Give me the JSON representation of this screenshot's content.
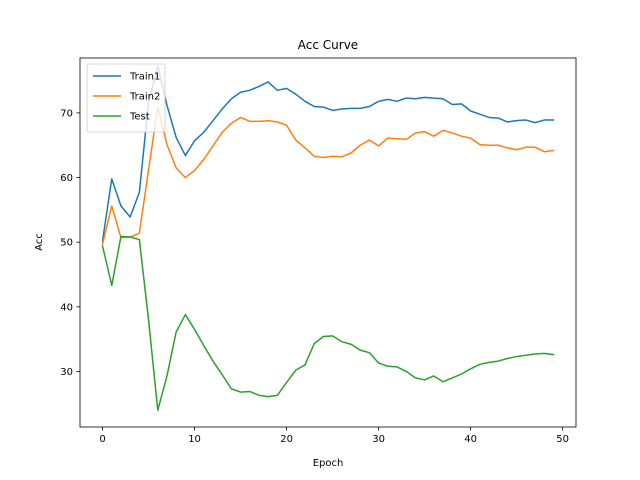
{
  "chart_data": {
    "type": "line",
    "title": "Acc Curve",
    "xlabel": "Epoch",
    "ylabel": "Acc",
    "xlim": [
      -2.45,
      51.45
    ],
    "ylim": [
      21.4,
      78.5
    ],
    "xticks": [
      0,
      10,
      20,
      30,
      40,
      50
    ],
    "yticks": [
      30,
      40,
      50,
      60,
      70
    ],
    "grid": false,
    "legend_position": "top-left",
    "x": [
      0,
      1,
      2,
      3,
      4,
      5,
      6,
      7,
      8,
      9,
      10,
      11,
      12,
      13,
      14,
      15,
      16,
      17,
      18,
      19,
      20,
      21,
      22,
      23,
      24,
      25,
      26,
      27,
      28,
      29,
      30,
      31,
      32,
      33,
      34,
      35,
      36,
      37,
      38,
      39,
      40,
      41,
      42,
      43,
      44,
      45,
      46,
      47,
      48,
      49
    ],
    "series": [
      {
        "name": "Train1",
        "color": "#1f77b4",
        "values": [
          50.2,
          59.8,
          55.6,
          53.9,
          57.7,
          71.6,
          77.3,
          71.2,
          66.2,
          63.4,
          65.7,
          67.0,
          68.8,
          70.6,
          72.2,
          73.2,
          73.5,
          74.1,
          74.8,
          73.5,
          73.8,
          72.9,
          71.8,
          71.0,
          70.9,
          70.4,
          70.6,
          70.7,
          70.7,
          71.0,
          71.8,
          72.1,
          71.8,
          72.3,
          72.2,
          72.4,
          72.3,
          72.2,
          71.3,
          71.4,
          70.3,
          69.8,
          69.3,
          69.2,
          68.6,
          68.8,
          68.9,
          68.5,
          68.9,
          68.9
        ]
      },
      {
        "name": "Train2",
        "color": "#ff7f0e",
        "values": [
          49.7,
          55.6,
          50.7,
          50.8,
          51.4,
          61.2,
          70.9,
          65.1,
          61.5,
          60.0,
          61.1,
          62.8,
          64.9,
          67.0,
          68.4,
          69.3,
          68.7,
          68.7,
          68.8,
          68.6,
          68.1,
          65.8,
          64.6,
          63.3,
          63.1,
          63.3,
          63.2,
          63.8,
          65.0,
          65.8,
          64.9,
          66.1,
          66.0,
          65.9,
          66.9,
          67.1,
          66.4,
          67.3,
          66.9,
          66.4,
          66.1,
          65.1,
          65.0,
          65.0,
          64.6,
          64.3,
          64.7,
          64.7,
          64.0,
          64.2
        ]
      },
      {
        "name": "Test",
        "color": "#2ca02c",
        "values": [
          49.4,
          43.3,
          50.9,
          50.8,
          50.4,
          38.0,
          24.0,
          29.3,
          36.1,
          38.8,
          36.5,
          34.0,
          31.6,
          29.5,
          27.3,
          26.8,
          26.9,
          26.3,
          26.1,
          26.3,
          28.3,
          30.2,
          31.0,
          34.3,
          35.4,
          35.5,
          34.6,
          34.2,
          33.3,
          32.9,
          31.3,
          30.8,
          30.7,
          30.0,
          29.0,
          28.7,
          29.3,
          28.4,
          29.0,
          29.6,
          30.4,
          31.1,
          31.4,
          31.6,
          32.0,
          32.3,
          32.5,
          32.7,
          32.8,
          32.6
        ]
      }
    ]
  }
}
